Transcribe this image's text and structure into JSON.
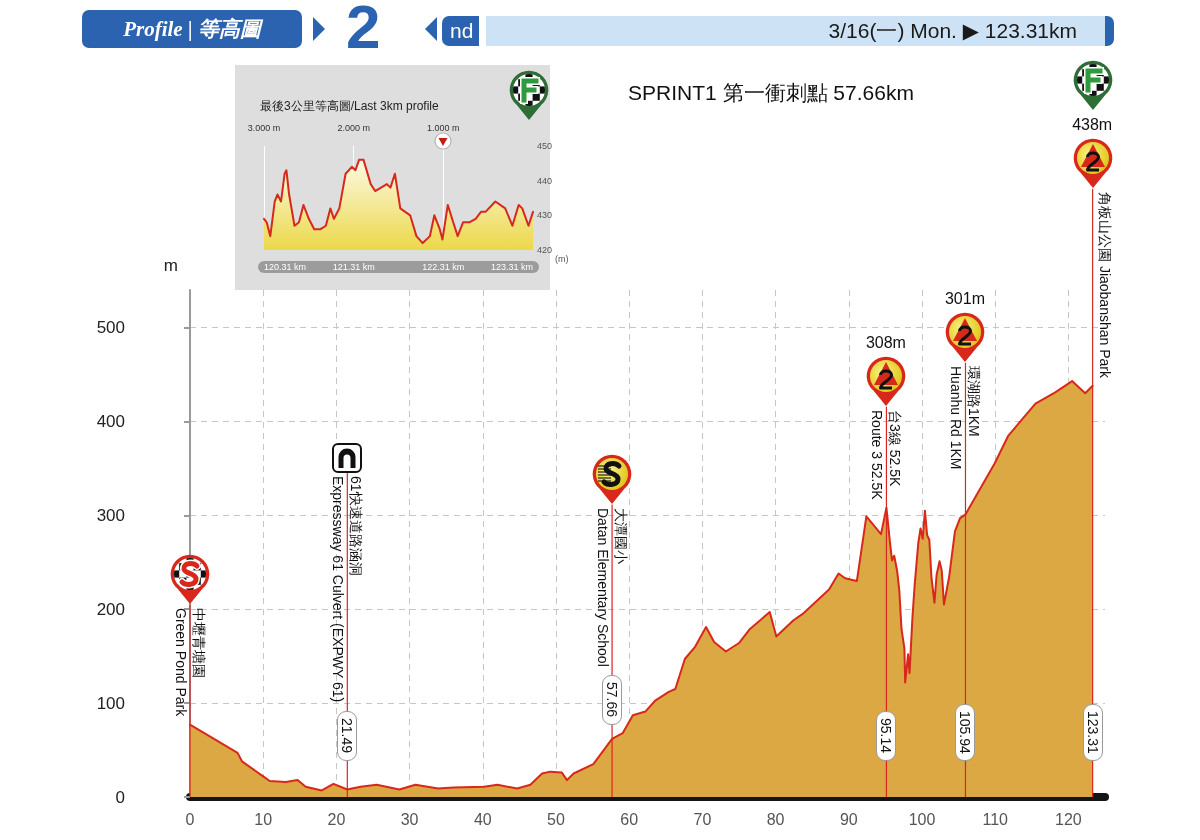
{
  "chart_data": [
    {
      "type": "other",
      "title": "Profile | 等高圖",
      "subtitle": "3/16(一) Mon. ▶ 123.31km",
      "annotations": [
        "2",
        "nd"
      ]
    },
    {
      "type": "area",
      "ylabel": "m",
      "x": [
        0,
        6.5,
        7.1,
        9.8,
        10.9,
        13.1,
        14.7,
        15.8,
        18.0,
        19.6,
        21.49,
        23.3,
        25.5,
        28.6,
        30.8,
        33.9,
        36.0,
        40.2,
        42.0,
        44.7,
        46.5,
        48.1,
        49.2,
        50.8,
        51.5,
        52.4,
        55.1,
        57.66,
        59.1,
        60.5,
        62.2,
        63.6,
        65.4,
        66.3,
        67.6,
        69.0,
        70.5,
        71.6,
        73.2,
        75.0,
        76.5,
        79.2,
        80.1,
        82.4,
        83.7,
        87.3,
        88.6,
        89.5,
        91.1,
        92.4,
        94.4,
        95.14,
        95.6,
        95.9,
        96.2,
        96.6,
        96.9,
        97.2,
        97.6,
        97.7,
        98.1,
        98.3,
        98.7,
        99.0,
        99.5,
        99.8,
        100.1,
        100.4,
        100.7,
        101.0,
        101.3,
        101.7,
        102.0,
        102.4,
        102.7,
        103.0,
        103.7,
        104.5,
        105.2,
        105.94,
        109.9,
        111.8,
        115.5,
        118.2,
        120.5,
        122.3,
        123.31
      ],
      "series": [
        {
          "color": "#dca844",
          "values": [
            77,
            47,
            38,
            23,
            17,
            16,
            18,
            11,
            7,
            14,
            8,
            11,
            13,
            8,
            13,
            9,
            10,
            11,
            13,
            9,
            13,
            25,
            27,
            26,
            18,
            25,
            35,
            62,
            68,
            87,
            91,
            103,
            112,
            115,
            147,
            160,
            181,
            165,
            155,
            164,
            179,
            197,
            171,
            188,
            195,
            221,
            238,
            233,
            230,
            299,
            280,
            308,
            273,
            252,
            257,
            241,
            220,
            179,
            158,
            122,
            152,
            132,
            192,
            226,
            271,
            286,
            275,
            305,
            279,
            274,
            233,
            207,
            237,
            251,
            241,
            205,
            234,
            283,
            297,
            301,
            355,
            385,
            419,
            431,
            443,
            430,
            438
          ]
        }
      ],
      "xlim": [
        0,
        125
      ],
      "xticks": [
        0,
        10,
        20,
        30,
        40,
        50,
        60,
        70,
        80,
        90,
        100,
        110,
        120
      ],
      "ylim": [
        0,
        540
      ],
      "yticks": [
        0,
        100,
        200,
        300,
        400,
        500
      ],
      "grid": true,
      "ref_lines": [
        {
          "axis": "x",
          "value": 0,
          "color": "#d8281c"
        },
        {
          "axis": "x",
          "value": 21.49,
          "label": "21.49",
          "color": "#d8281c"
        },
        {
          "axis": "x",
          "value": 57.66,
          "label": "57.66",
          "color": "#d8281c"
        },
        {
          "axis": "x",
          "value": 95.14,
          "label": "95.14",
          "color": "#d8281c"
        },
        {
          "axis": "x",
          "value": 105.94,
          "label": "105.94",
          "color": "#d8281c"
        },
        {
          "axis": "x",
          "value": 123.31,
          "label": "123.31",
          "color": "#d8281c"
        }
      ],
      "annotations": [
        "SPRINT1 第一衝刺點 57.66km",
        "中壢青塘園\nGreen Pond Park",
        "61快速道路涵洞\nExpressway 61 Culvert (EXPWY 61)",
        "大潭國小\nDatan Elementary School",
        "台3線 52.5K\nRoute 3 52.5K",
        "308m",
        "環湖路1KM\nHuanhu Rd 1KM",
        "301m",
        "角板山公園 Jiaobanshan Park",
        "438m"
      ]
    },
    {
      "type": "area",
      "title": "最後3公里等高圖/Last 3km profile",
      "y2label": "(m)",
      "x": [
        120.31,
        120.34,
        120.38,
        120.43,
        120.46,
        120.5,
        120.54,
        120.56,
        120.59,
        120.65,
        120.7,
        120.75,
        120.81,
        120.87,
        120.94,
        121.0,
        121.05,
        121.09,
        121.15,
        121.22,
        121.29,
        121.33,
        121.37,
        121.42,
        121.5,
        121.55,
        121.68,
        121.72,
        121.77,
        121.83,
        121.94,
        122.01,
        122.08,
        122.16,
        122.21,
        122.27,
        122.3,
        122.36,
        122.42,
        122.47,
        122.53,
        122.6,
        122.67,
        122.73,
        122.78,
        122.89,
        123.0,
        123.08,
        123.15,
        123.19,
        123.26,
        123.31
      ],
      "series": [
        {
          "color": "#ecd84a",
          "axis": "y2",
          "values": [
            429,
            428,
            424,
            434,
            436,
            434,
            442,
            443,
            436,
            427,
            428,
            433,
            429,
            426,
            426,
            427,
            432,
            429,
            432,
            442,
            444,
            443,
            446,
            446,
            439,
            437,
            439,
            438,
            442,
            432,
            430,
            424,
            422,
            424,
            430,
            426,
            423,
            433,
            428,
            424,
            428,
            428,
            429,
            431,
            431,
            434,
            432,
            427,
            433,
            432,
            427,
            431
          ]
        }
      ],
      "xlim": [
        120.31,
        123.31
      ],
      "xticks": [
        {
          "value": 120.31,
          "label": "120.31 km"
        },
        {
          "value": 121.31,
          "label": "121.31 km"
        },
        {
          "value": 122.31,
          "label": "122.31 km"
        },
        {
          "value": 123.31,
          "label": "123.31 km"
        }
      ],
      "x2lim": [
        3,
        0
      ],
      "x2ticks": [
        {
          "value": 3,
          "label": "3.000 m"
        },
        {
          "value": 2,
          "label": "2.000 m"
        },
        {
          "value": 1,
          "label": "1.000 m"
        }
      ],
      "y2lim": [
        420,
        450
      ],
      "y2ticks": [
        420,
        430,
        440,
        450
      ],
      "grid": "x"
    }
  ]
}
